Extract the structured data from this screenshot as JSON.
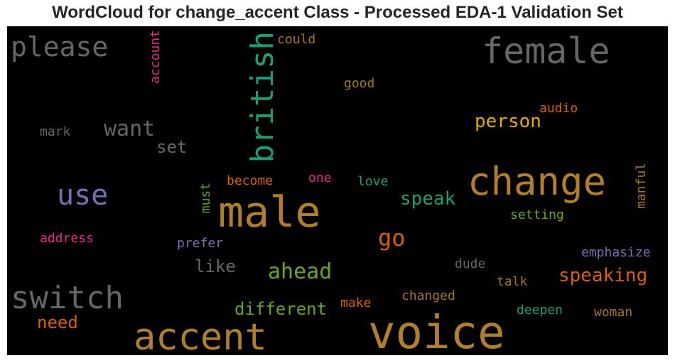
{
  "chart_data": {
    "type": "wordcloud",
    "title": "WordCloud for change_accent Class - Processed EDA-1 Validation Set",
    "background": "#000000",
    "words": [
      {
        "text": "voice",
        "color": "#b07f28"
      },
      {
        "text": "male",
        "color": "#b07f28"
      },
      {
        "text": "change",
        "color": "#b07f28"
      },
      {
        "text": "accent",
        "color": "#b07f28"
      },
      {
        "text": "female",
        "color": "#666666"
      },
      {
        "text": "british",
        "color": "#1b9e77"
      },
      {
        "text": "switch",
        "color": "#666666"
      },
      {
        "text": "please",
        "color": "#666666"
      },
      {
        "text": "use",
        "color": "#7570b3"
      },
      {
        "text": "want",
        "color": "#666666"
      },
      {
        "text": "go",
        "color": "#d95f02"
      },
      {
        "text": "ahead",
        "color": "#66a61e"
      },
      {
        "text": "speaking",
        "color": "#d95f02"
      },
      {
        "text": "person",
        "color": "#e6ab02"
      },
      {
        "text": "speak",
        "color": "#1b9e77"
      },
      {
        "text": "different",
        "color": "#66a61e"
      },
      {
        "text": "need",
        "color": "#d95f02"
      },
      {
        "text": "like",
        "color": "#666666"
      },
      {
        "text": "set",
        "color": "#666666"
      },
      {
        "text": "account",
        "color": "#e7298a"
      },
      {
        "text": "could",
        "color": "#a6761d"
      },
      {
        "text": "good",
        "color": "#a6761d"
      },
      {
        "text": "audio",
        "color": "#d95f02"
      },
      {
        "text": "mark",
        "color": "#666666"
      },
      {
        "text": "become",
        "color": "#d95f02"
      },
      {
        "text": "one",
        "color": "#e7298a"
      },
      {
        "text": "love",
        "color": "#1b9e77"
      },
      {
        "text": "must",
        "color": "#66a61e"
      },
      {
        "text": "manful",
        "color": "#a6761d"
      },
      {
        "text": "setting",
        "color": "#66a61e"
      },
      {
        "text": "address",
        "color": "#e7298a"
      },
      {
        "text": "prefer",
        "color": "#7570b3"
      },
      {
        "text": "emphasize",
        "color": "#7570b3"
      },
      {
        "text": "dude",
        "color": "#666666"
      },
      {
        "text": "talk",
        "color": "#a6761d"
      },
      {
        "text": "make",
        "color": "#d95f02"
      },
      {
        "text": "changed",
        "color": "#a6761d"
      },
      {
        "text": "deepen",
        "color": "#1b9e77"
      },
      {
        "text": "woman",
        "color": "#a6761d"
      }
    ]
  }
}
